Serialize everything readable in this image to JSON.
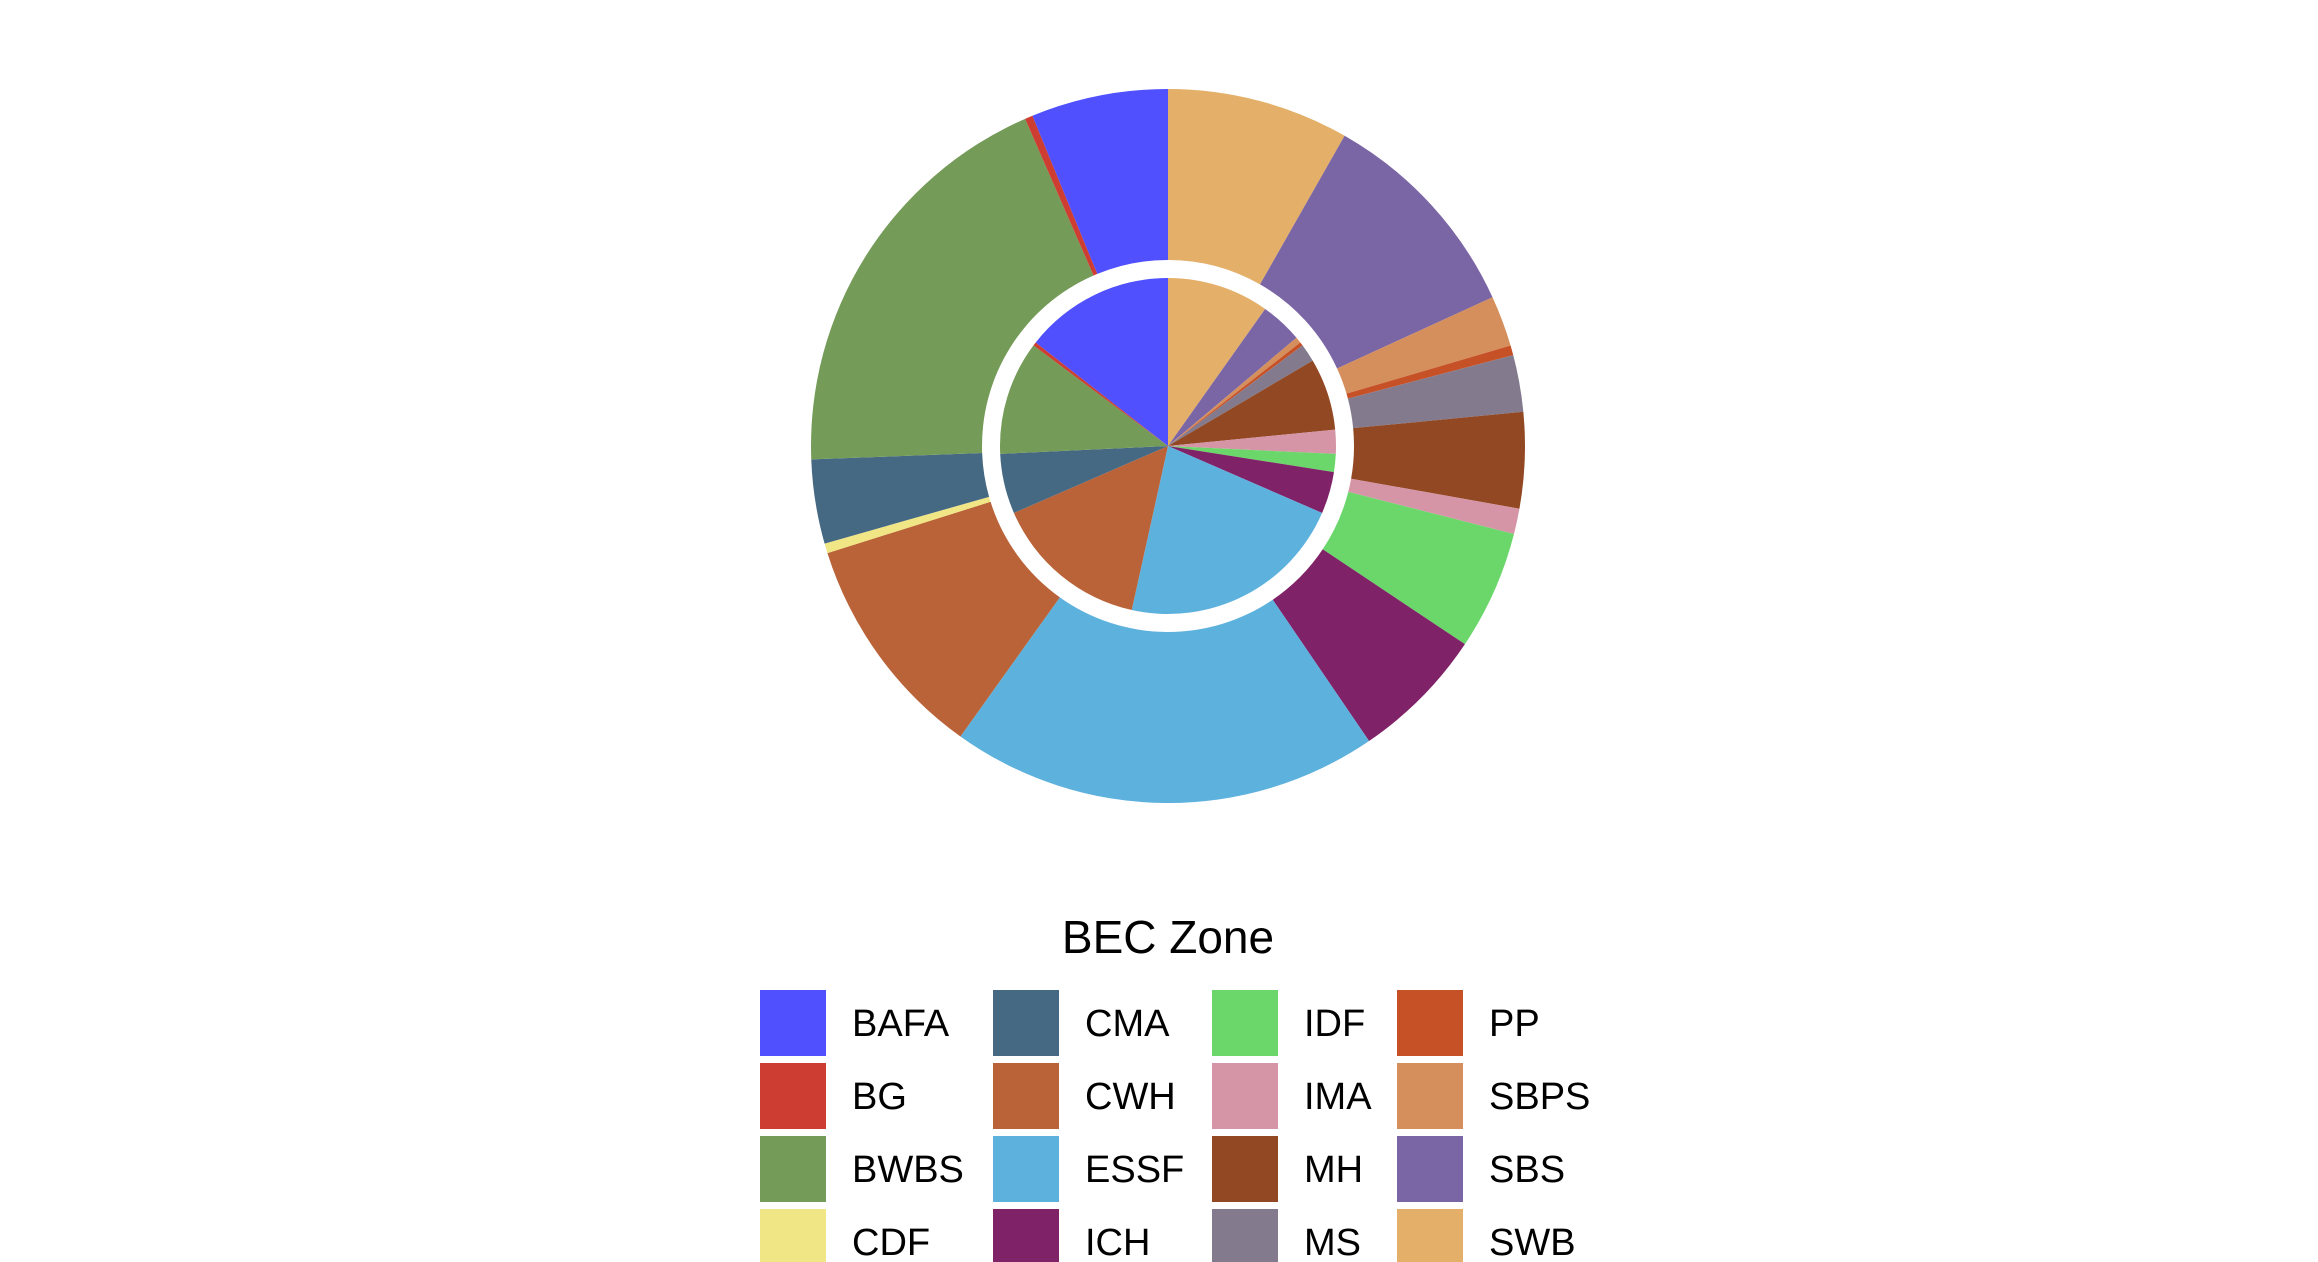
{
  "chart_data": {
    "type": "pie",
    "variant": "nested-donut",
    "legend": {
      "title": "BEC Zone",
      "placement": "bottom",
      "columns": 4
    },
    "categories": [
      "BAFA",
      "BG",
      "BWBS",
      "CDF",
      "CMA",
      "CWH",
      "ESSF",
      "ICH",
      "IDF",
      "IMA",
      "MH",
      "MS",
      "PP",
      "SBPS",
      "SBS",
      "SWB"
    ],
    "colors": {
      "BAFA": "#5050FF",
      "BG": "#CE3D32",
      "BWBS": "#749B58",
      "CDF": "#F0E685",
      "CMA": "#466983",
      "CWH": "#BA6338",
      "ESSF": "#5DB1DD",
      "ICH": "#802268",
      "IDF": "#6BD76B",
      "IMA": "#D595A7",
      "MH": "#924822",
      "MS": "#837B8D",
      "PP": "#C75127",
      "SBPS": "#D58F5C",
      "SBS": "#7A65A5",
      "SWB": "#E4AF69"
    },
    "series": [
      {
        "ring": "inner",
        "values": {
          "SWB": 8.5,
          "SBS": 3.5,
          "SBPS": 0.5,
          "PP": 0.3,
          "MS": 1.5,
          "MH": 6.0,
          "IMA": 2.0,
          "IDF": 1.5,
          "ICH": 3.5,
          "ESSF": 19.0,
          "CWH": 13.0,
          "CDF": 0.0,
          "CMA": 5.0,
          "BWBS": 9.5,
          "BG": 0.3,
          "BAFA": 12.5
        }
      },
      {
        "ring": "outer",
        "values": {
          "SWB": 9.3,
          "SBS": 11.2,
          "SBPS": 2.6,
          "PP": 0.5,
          "MS": 2.9,
          "MH": 4.9,
          "IMA": 1.3,
          "IDF": 6.1,
          "ICH": 6.9,
          "ESSF": 21.9,
          "CWH": 11.6,
          "CMA": 4.3,
          "CDF": 0.5,
          "BWBS": 21.5,
          "BG": 0.4,
          "BAFA": 7.0
        }
      }
    ]
  }
}
